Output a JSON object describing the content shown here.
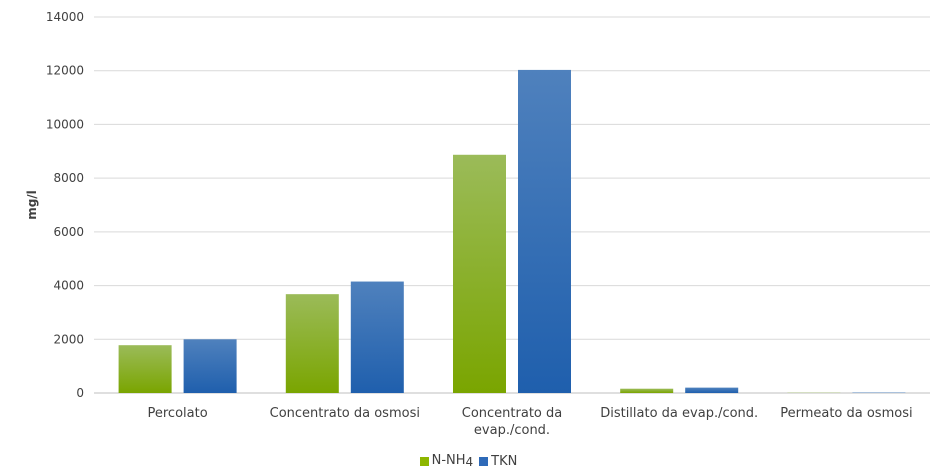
{
  "chart_data": {
    "type": "bar",
    "ylabel": "mg/l",
    "xlabel": "",
    "ylim": [
      0,
      14000
    ],
    "yticks": [
      0,
      2000,
      4000,
      6000,
      8000,
      10000,
      12000,
      14000
    ],
    "ytick_labels": [
      "0",
      "2000",
      "4000",
      "6000",
      "8000",
      "10000",
      "12000",
      "14000"
    ],
    "grid": true,
    "legend_position": "bottom",
    "categories": [
      [
        "Percolato"
      ],
      [
        "Concentrato da osmosi"
      ],
      [
        "Concentrato da",
        "evap./cond."
      ],
      [
        "Distillato da evap./cond."
      ],
      [
        "Permeato da osmosi"
      ]
    ],
    "series": [
      {
        "name": "N-NH4",
        "values": [
          1780,
          3680,
          8870,
          160,
          10
        ],
        "color_top": "#9bbb59",
        "color_bottom": "#7aa500"
      },
      {
        "name": "TKN",
        "values": [
          2000,
          4150,
          12030,
          200,
          15
        ],
        "color_top": "#4f81bd",
        "color_bottom": "#1f5fad"
      }
    ]
  },
  "legend": {
    "items": [
      {
        "label": "N-NH4",
        "color": "#8db600"
      },
      {
        "label": "TKN",
        "color": "#2e6ab8"
      }
    ]
  }
}
